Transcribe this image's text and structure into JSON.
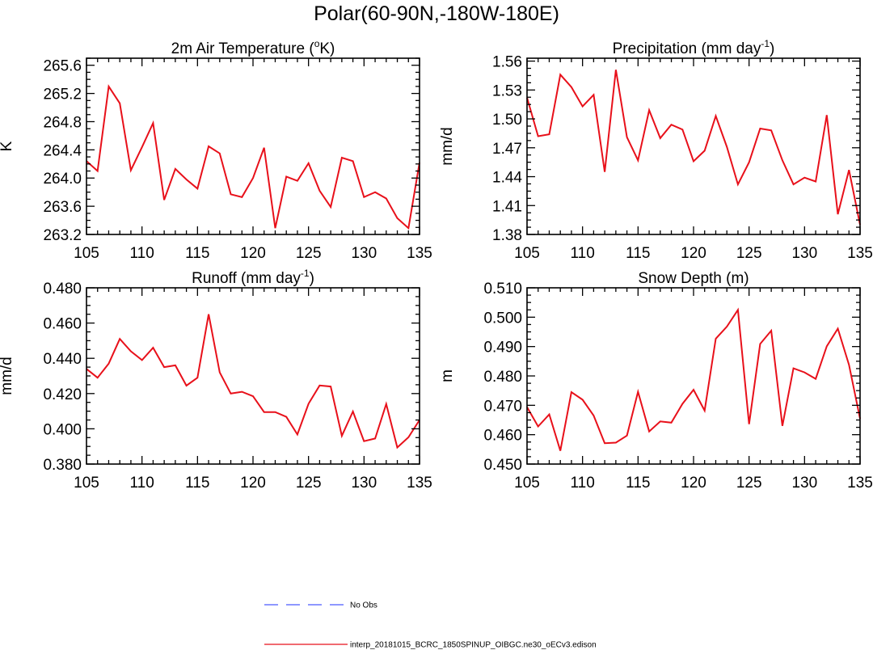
{
  "figure": {
    "title": "Polar(60-90N,-180W-180E)",
    "line_color": "#e8101a",
    "obs_color": "#4b5bff"
  },
  "legend": {
    "items": [
      {
        "label": "No Obs",
        "style": "dashed",
        "color": "#4b5bff"
      },
      {
        "label": "interp_20181015_BCRC_1850SPINUP_OIBGC.ne30_oECv3.edison",
        "style": "solid",
        "color": "#e8101a"
      }
    ]
  },
  "chart_data": [
    {
      "type": "line",
      "title": "2m Air Temperature (°K)",
      "title_parts": [
        "2m Air Temperature (",
        "o",
        "K)"
      ],
      "xlabel": "",
      "ylabel": "K",
      "xlim": [
        105,
        135
      ],
      "ylim": [
        263.2,
        265.7
      ],
      "xticks": [
        "105",
        "110",
        "115",
        "120",
        "125",
        "130",
        "135"
      ],
      "yticks": [
        "263.2",
        "263.6",
        "264.0",
        "264.4",
        "264.8",
        "265.2",
        "265.6"
      ],
      "x": [
        105,
        106,
        107,
        108,
        109,
        110,
        111,
        112,
        113,
        114,
        115,
        116,
        117,
        118,
        119,
        120,
        121,
        122,
        123,
        124,
        125,
        126,
        127,
        128,
        129,
        130,
        131,
        132,
        133,
        134,
        135
      ],
      "series": [
        {
          "values": [
            264.24,
            264.1,
            265.3,
            265.06,
            264.11,
            264.44,
            264.78,
            263.69,
            264.13,
            263.98,
            263.85,
            264.45,
            264.35,
            263.77,
            263.73,
            264.0,
            264.43,
            263.29,
            264.02,
            263.96,
            264.21,
            263.82,
            263.59,
            264.29,
            264.24,
            263.73,
            263.8,
            263.71,
            263.43,
            263.29,
            264.22
          ]
        }
      ]
    },
    {
      "type": "line",
      "title": "Precipitation (mm day-1)",
      "title_parts": [
        "Precipitation (mm day",
        "-1",
        ")"
      ],
      "xlabel": "",
      "ylabel": "mm/d",
      "xlim": [
        105,
        135
      ],
      "ylim": [
        1.38,
        1.563
      ],
      "xticks": [
        "105",
        "110",
        "115",
        "120",
        "125",
        "130",
        "135"
      ],
      "yticks": [
        "1.38",
        "1.41",
        "1.44",
        "1.47",
        "1.50",
        "1.53",
        "1.56"
      ],
      "x": [
        105,
        106,
        107,
        108,
        109,
        110,
        111,
        112,
        113,
        114,
        115,
        116,
        117,
        118,
        119,
        120,
        121,
        122,
        123,
        124,
        125,
        126,
        127,
        128,
        129,
        130,
        131,
        132,
        133,
        134,
        135
      ],
      "series": [
        {
          "values": [
            1.522,
            1.482,
            1.484,
            1.546,
            1.533,
            1.513,
            1.525,
            1.445,
            1.551,
            1.481,
            1.457,
            1.509,
            1.48,
            1.494,
            1.489,
            1.456,
            1.467,
            1.503,
            1.471,
            1.432,
            1.455,
            1.49,
            1.488,
            1.457,
            1.432,
            1.439,
            1.435,
            1.504,
            1.401,
            1.447,
            1.39
          ]
        }
      ]
    },
    {
      "type": "line",
      "title": "Runoff (mm day-1)",
      "title_parts": [
        "Runoff (mm day",
        "-1",
        ")"
      ],
      "xlabel": "",
      "ylabel": "mm/d",
      "xlim": [
        105,
        135
      ],
      "ylim": [
        0.38,
        0.48
      ],
      "xticks": [
        "105",
        "110",
        "115",
        "120",
        "125",
        "130",
        "135"
      ],
      "yticks": [
        "0.380",
        "0.400",
        "0.420",
        "0.440",
        "0.460",
        "0.480"
      ],
      "x": [
        105,
        106,
        107,
        108,
        109,
        110,
        111,
        112,
        113,
        114,
        115,
        116,
        117,
        118,
        119,
        120,
        121,
        122,
        123,
        124,
        125,
        126,
        127,
        128,
        129,
        130,
        131,
        132,
        133,
        134,
        135
      ],
      "series": [
        {
          "values": [
            0.434,
            0.429,
            0.437,
            0.451,
            0.444,
            0.439,
            0.446,
            0.435,
            0.436,
            0.4245,
            0.429,
            0.465,
            0.432,
            0.42,
            0.421,
            0.4185,
            0.4095,
            0.4095,
            0.4068,
            0.3968,
            0.4142,
            0.4246,
            0.424,
            0.396,
            0.4098,
            0.393,
            0.3945,
            0.4141,
            0.3894,
            0.3952,
            0.405
          ]
        }
      ]
    },
    {
      "type": "line",
      "title": "Snow Depth (m)",
      "title_parts": [
        "Snow Depth (m)"
      ],
      "xlabel": "",
      "ylabel": "m",
      "xlim": [
        105,
        135
      ],
      "ylim": [
        0.45,
        0.51
      ],
      "xticks": [
        "105",
        "110",
        "115",
        "120",
        "125",
        "130",
        "135"
      ],
      "yticks": [
        "0.450",
        "0.460",
        "0.470",
        "0.480",
        "0.490",
        "0.500",
        "0.510"
      ],
      "x": [
        105,
        106,
        107,
        108,
        109,
        110,
        111,
        112,
        113,
        114,
        115,
        116,
        117,
        118,
        119,
        120,
        121,
        122,
        123,
        124,
        125,
        126,
        127,
        128,
        129,
        130,
        131,
        132,
        133,
        134,
        135
      ],
      "series": [
        {
          "values": [
            0.4694,
            0.4628,
            0.4669,
            0.4545,
            0.4745,
            0.4719,
            0.4665,
            0.4571,
            0.4573,
            0.4597,
            0.4746,
            0.4611,
            0.4645,
            0.4641,
            0.4705,
            0.4753,
            0.4682,
            0.4927,
            0.4968,
            0.5025,
            0.4636,
            0.4909,
            0.4954,
            0.463,
            0.4826,
            0.4812,
            0.479,
            0.4901,
            0.4961,
            0.4838,
            0.4654
          ]
        }
      ]
    }
  ]
}
